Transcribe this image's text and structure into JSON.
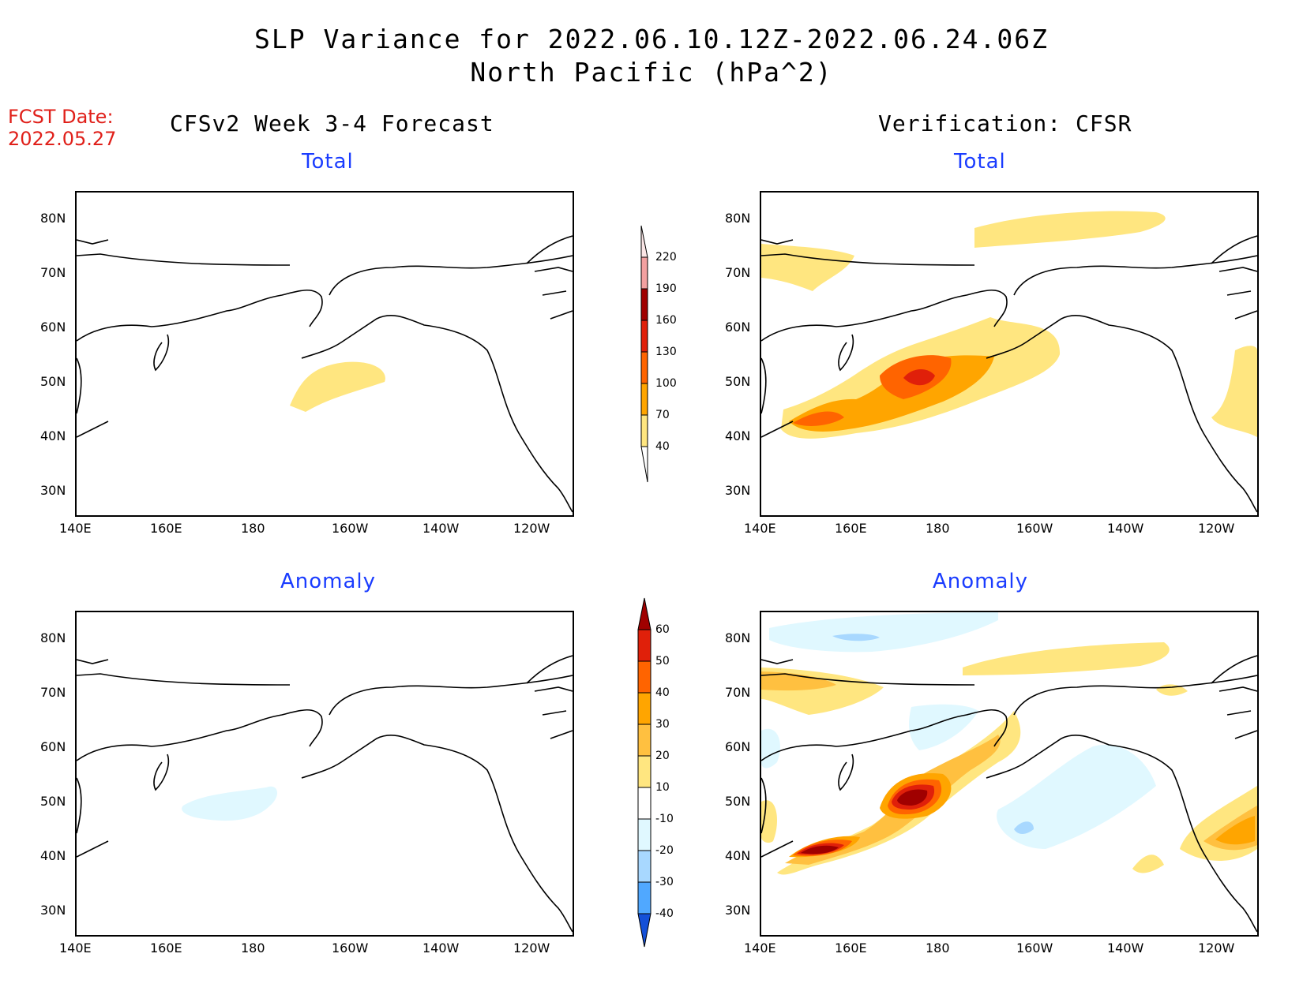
{
  "title": {
    "line1": "SLP Variance for 2022.06.10.12Z-2022.06.24.06Z",
    "line2": "North Pacific (hPa^2)"
  },
  "fcst_date": {
    "label": "FCST Date:",
    "value": "2022.05.27"
  },
  "columns": {
    "left": "CFSv2 Week 3-4 Forecast",
    "right": "Verification: CFSR"
  },
  "panels": {
    "total_label": "Total",
    "anomaly_label": "Anomaly"
  },
  "axes": {
    "lon_ticks": [
      "140E",
      "160E",
      "180",
      "160W",
      "140W",
      "120W"
    ],
    "lat_ticks": [
      "80N",
      "70N",
      "60N",
      "50N",
      "40N",
      "30N"
    ]
  },
  "colorbar_total": {
    "levels": [
      "220",
      "190",
      "160",
      "130",
      "100",
      "70",
      "40"
    ],
    "colors": [
      "#fbe6e6",
      "#f2a0a0",
      "#a00000",
      "#e0200a",
      "#ff6400",
      "#ffa500",
      "#ffe680"
    ]
  },
  "colorbar_anomaly": {
    "levels": [
      "60",
      "50",
      "40",
      "30",
      "20",
      "10",
      "-10",
      "-20",
      "-30",
      "-40"
    ],
    "colors": [
      "#a00000",
      "#e0200a",
      "#ff6400",
      "#ffa500",
      "#ffc040",
      "#ffe680",
      "#ffffff",
      "#e0f8ff",
      "#a8d8ff",
      "#50a8ff",
      "#1e78f0",
      "#1450d8"
    ]
  }
}
